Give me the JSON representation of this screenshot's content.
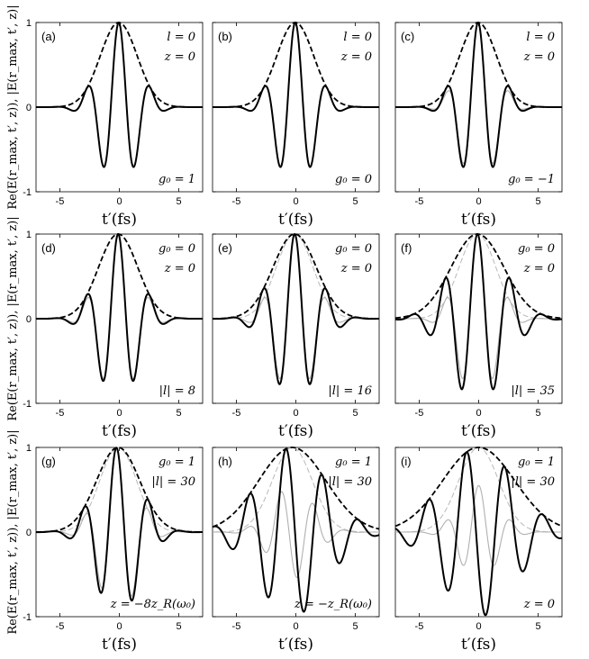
{
  "chart_data": {
    "type": "line",
    "layout": "3x3 grid of panels",
    "xlabel": "t′(fs)",
    "ylabels": [
      "Re(E(r_max, t′, z)), |E(r_max, t′, z)|",
      "Re(E(r_max, t′, z)), |E(r_max, t′, z)|",
      "Re(E(r_max, t′, z)), |E(r_max, t′, z)|"
    ],
    "xlim": [
      -7,
      7
    ],
    "ylim": [
      -1,
      1
    ],
    "xticks": [
      -5,
      0,
      5
    ],
    "xtick_labels": [
      "-5",
      "0",
      "5"
    ],
    "yticks": [
      -1,
      0,
      1
    ],
    "ytick_labels": [
      "-1",
      "0",
      "1"
    ],
    "grid": false,
    "legend": "none",
    "series_styles": {
      "envelope": "black thick dashed",
      "real_field": "black thick solid",
      "reference": "light gray thin"
    },
    "panels": [
      {
        "label": "(a)",
        "annotations": [
          "l = 0",
          "z = 0",
          "g0 = 1"
        ],
        "sigma": 2.3,
        "omega": 2.35,
        "phase": 0.0,
        "center": -0.05,
        "ref_omega": 2.35,
        "ref_phase": 0.0,
        "ref_amp": 1.0,
        "ref_sigma": 2.3,
        "ref_env_sigma": 2.3
      },
      {
        "label": "(b)",
        "annotations": [
          "l = 0",
          "z = 0",
          "g0 = 0"
        ],
        "sigma": 2.3,
        "omega": 2.35,
        "phase": 0.0,
        "center": -0.05,
        "ref_omega": 2.35,
        "ref_phase": 0.0,
        "ref_amp": 1.0,
        "ref_sigma": 2.3,
        "ref_env_sigma": 2.3
      },
      {
        "label": "(c)",
        "annotations": [
          "l = 0",
          "z = 0",
          "g0 = −1"
        ],
        "sigma": 2.3,
        "omega": 2.35,
        "phase": 0.0,
        "center": -0.05,
        "ref_omega": 2.35,
        "ref_phase": 0.0,
        "ref_amp": 1.0,
        "ref_sigma": 2.1,
        "ref_env_sigma": 2.3
      },
      {
        "label": "(d)",
        "annotations": [
          "g0 = 0",
          "z = 0",
          "|l| = 8"
        ],
        "sigma": 2.45,
        "omega": 2.35,
        "phase": 0.0,
        "center": -0.1,
        "ref_omega": 2.35,
        "ref_phase": 0.0,
        "ref_amp": 1.0,
        "ref_sigma": 2.3,
        "ref_env_sigma": 2.3
      },
      {
        "label": "(e)",
        "annotations": [
          "g0 = 0",
          "z = 0",
          "|l| = 16"
        ],
        "sigma": 2.7,
        "omega": 2.35,
        "phase": 0.0,
        "center": -0.1,
        "ref_omega": 2.35,
        "ref_phase": 0.0,
        "ref_amp": 1.0,
        "ref_sigma": 2.3,
        "ref_env_sigma": 2.3
      },
      {
        "label": "(f)",
        "annotations": [
          "g0 = 0",
          "z = 0",
          "|l| = 35"
        ],
        "sigma": 3.3,
        "omega": 2.3,
        "phase": 0.0,
        "center": -0.1,
        "ref_omega": 2.35,
        "ref_phase": 0.0,
        "ref_amp": 1.0,
        "ref_sigma": 2.3,
        "ref_env_sigma": 2.3
      },
      {
        "label": "(g)",
        "annotations": [
          "g0 = 1",
          "|l| = 30",
          "z = −8zR(ω0)"
        ],
        "sigma": 2.7,
        "omega": 2.3,
        "phase": 0.35,
        "center": -0.1,
        "ref_omega": 2.35,
        "ref_phase": 0.3,
        "ref_amp": 1.0,
        "ref_sigma": 2.3,
        "ref_env_sigma": 2.3
      },
      {
        "label": "(h)",
        "annotations": [
          "g0 = 1",
          "|l| = 30",
          "z = −zR(ω0)"
        ],
        "sigma": 4.2,
        "omega": 2.05,
        "phase": 1.1,
        "center": -0.3,
        "ref_omega": 2.3,
        "ref_phase": 2.2,
        "ref_amp": 0.55,
        "ref_sigma": 2.6,
        "ref_env_sigma": 2.5
      },
      {
        "label": "(i)",
        "annotations": [
          "g0 = 1",
          "|l| = 30",
          "z = 0"
        ],
        "sigma": 4.5,
        "omega": 1.95,
        "phase": 2.0,
        "center": 0.0,
        "ref_omega": 2.3,
        "ref_phase": 0.0,
        "ref_amp": 0.55,
        "ref_sigma": 2.4,
        "ref_env_sigma": 2.5
      }
    ]
  }
}
